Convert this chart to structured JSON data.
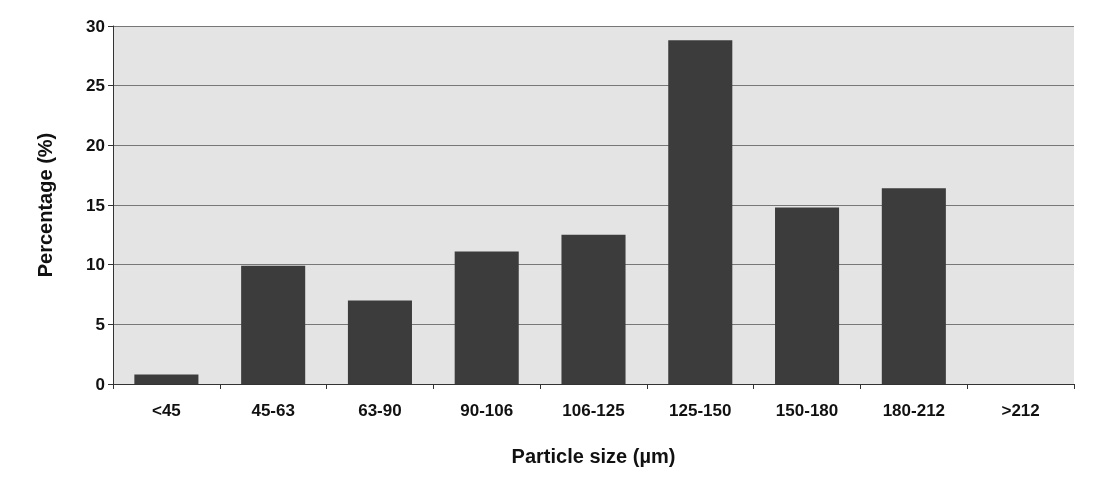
{
  "chart_data": {
    "type": "bar",
    "xlabel": "Particle size (µm)",
    "ylabel": "Percentage (%)",
    "categories": [
      "<45",
      "45-63",
      "63-90",
      "90-106",
      "106-125",
      "125-150",
      "150-180",
      "180-212",
      ">212"
    ],
    "values": [
      0.8,
      9.9,
      7.0,
      11.1,
      12.5,
      28.8,
      14.8,
      16.4,
      0
    ],
    "color": "#3c3c3c",
    "ylim": [
      0,
      30
    ],
    "yticks": [
      0,
      5,
      10,
      15,
      20,
      25,
      30
    ],
    "grid": "y"
  }
}
